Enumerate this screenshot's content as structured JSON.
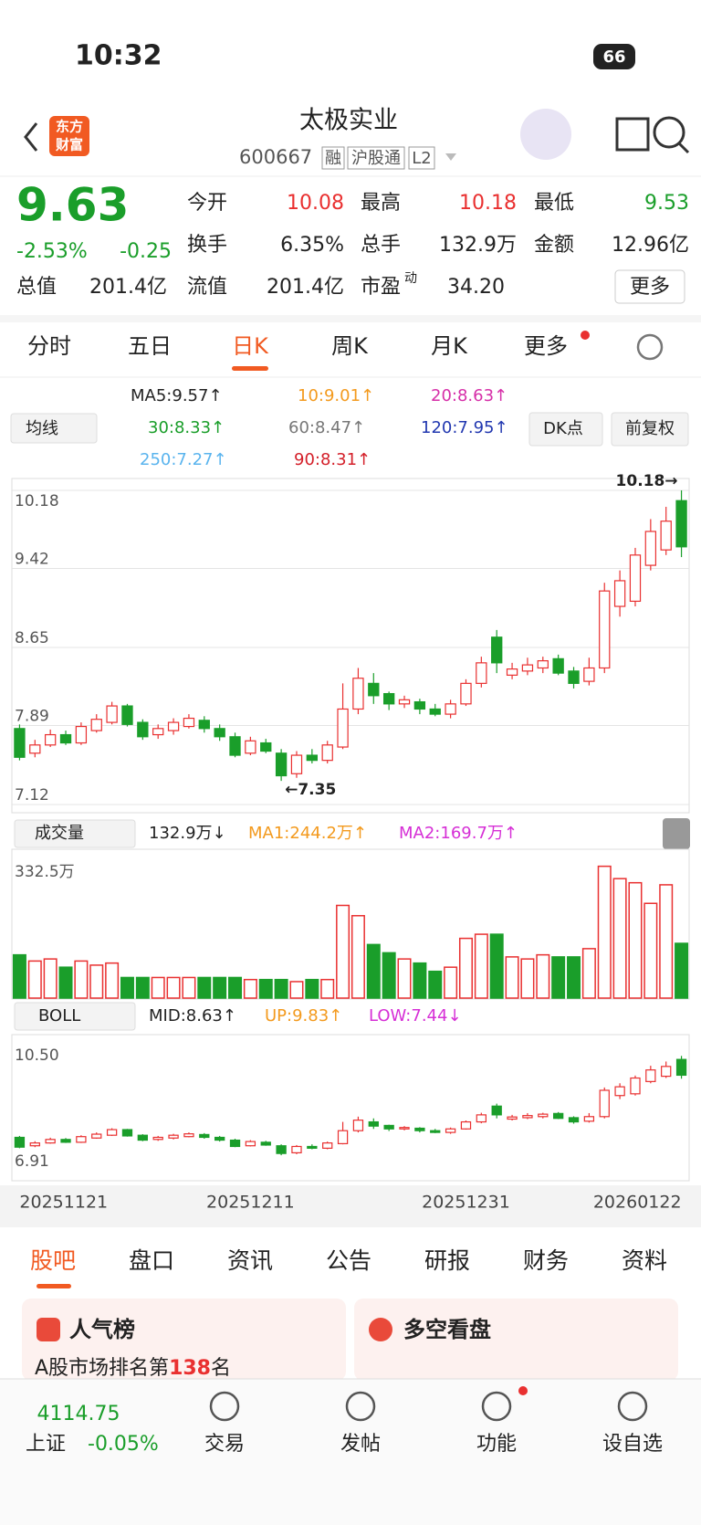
{
  "status": {
    "time": "10:32",
    "battery": "66"
  },
  "header": {
    "logo": [
      "东方",
      "财富"
    ],
    "title": "太极实业",
    "code": "600667",
    "tags": [
      "融",
      "沪股通",
      "L2"
    ]
  },
  "quote": {
    "price": "9.63",
    "change_pct": "-2.53%",
    "change": "-0.25",
    "fields": [
      {
        "label": "今开",
        "value": "10.08"
      },
      {
        "label": "最高",
        "value": "10.18"
      },
      {
        "label": "最低",
        "value": "9.53"
      },
      {
        "label": "换手",
        "value": "6.35%"
      },
      {
        "label": "总手",
        "value": "132.9万"
      },
      {
        "label": "金额",
        "value": "12.96亿"
      },
      {
        "label": "总值",
        "value": "201.4亿"
      },
      {
        "label": "流值",
        "value": "201.4亿"
      },
      {
        "label": "市盈",
        "sup": "动",
        "value": "34.20"
      }
    ],
    "more": "更多"
  },
  "tabs": [
    "分时",
    "五日",
    "日K",
    "周K",
    "月K",
    "更多"
  ],
  "indicators": {
    "ma_selector": "均线",
    "ma": [
      "MA5:9.57↑",
      "10:9.01↑",
      "20:8.63↑",
      "30:8.33↑",
      "60:8.47↑",
      "120:7.95↑",
      "250:7.27↑",
      "90:8.31↑"
    ],
    "buttons": [
      "DK点",
      "前复权"
    ],
    "volume_selector": "成交量",
    "volume": [
      "132.9万↓",
      "MA1:244.2万↑",
      "MA2:169.7万↑"
    ],
    "boll_selector": "BOLL",
    "boll": [
      "MID:8.63↑",
      "UP:9.83↑",
      "LOW:7.44↓"
    ]
  },
  "chart_data": [
    {
      "type": "candlestick",
      "up_color": "#e93030",
      "down_color": "#1a9e2a",
      "categories": [
        "20251121",
        null,
        null,
        null,
        null,
        null,
        null,
        null,
        null,
        null,
        null,
        null,
        null,
        null,
        null,
        "20251211",
        null,
        null,
        null,
        null,
        null,
        null,
        null,
        null,
        null,
        null,
        null,
        null,
        null,
        "20251231",
        null,
        null,
        null,
        null,
        null,
        null,
        null,
        null,
        null,
        null,
        null,
        null,
        null,
        "20260122"
      ],
      "open": [
        7.86,
        7.62,
        7.7,
        7.8,
        7.72,
        7.84,
        7.92,
        8.08,
        7.92,
        7.8,
        7.84,
        7.88,
        7.94,
        7.86,
        7.78,
        7.62,
        7.72,
        7.62,
        7.42,
        7.6,
        7.55,
        7.68,
        8.05,
        8.3,
        8.2,
        8.1,
        8.12,
        8.05,
        8.0,
        8.1,
        8.3,
        8.75,
        8.38,
        8.42,
        8.45,
        8.54,
        8.42,
        8.32,
        8.45,
        9.05,
        9.1,
        9.45,
        9.6,
        10.08
      ],
      "close": [
        7.58,
        7.7,
        7.8,
        7.72,
        7.88,
        7.95,
        8.08,
        7.9,
        7.78,
        7.86,
        7.92,
        7.96,
        7.86,
        7.78,
        7.6,
        7.74,
        7.64,
        7.4,
        7.6,
        7.55,
        7.7,
        8.05,
        8.35,
        8.18,
        8.1,
        8.14,
        8.05,
        8.0,
        8.1,
        8.3,
        8.5,
        8.5,
        8.44,
        8.48,
        8.52,
        8.4,
        8.3,
        8.45,
        9.2,
        9.3,
        9.55,
        9.78,
        9.88,
        9.63
      ],
      "high": [
        7.9,
        7.75,
        7.85,
        7.84,
        7.92,
        8.0,
        8.12,
        8.1,
        7.95,
        7.9,
        7.96,
        8.0,
        7.98,
        7.9,
        7.82,
        7.78,
        7.76,
        7.66,
        7.64,
        7.66,
        7.74,
        8.3,
        8.45,
        8.4,
        8.22,
        8.18,
        8.15,
        8.1,
        8.14,
        8.34,
        8.56,
        8.82,
        8.5,
        8.55,
        8.56,
        8.58,
        8.46,
        8.55,
        9.28,
        9.4,
        9.62,
        9.9,
        10.02,
        10.18
      ],
      "low": [
        7.55,
        7.58,
        7.68,
        7.7,
        7.7,
        7.82,
        7.9,
        7.88,
        7.75,
        7.76,
        7.8,
        7.86,
        7.82,
        7.74,
        7.58,
        7.6,
        7.62,
        7.35,
        7.38,
        7.52,
        7.52,
        7.66,
        8.0,
        8.1,
        8.04,
        8.06,
        8.0,
        7.98,
        7.96,
        8.08,
        8.26,
        8.4,
        8.34,
        8.38,
        8.4,
        8.38,
        8.25,
        8.28,
        8.4,
        8.95,
        9.05,
        9.4,
        9.55,
        9.53
      ],
      "ylim": [
        7.12,
        10.18
      ],
      "yticks": [
        10.18,
        9.42,
        8.65,
        7.89,
        7.12
      ],
      "grid": true,
      "annotations": [
        {
          "text": "10.18→",
          "index": 43,
          "value": 10.18
        },
        {
          "text": "←7.35",
          "index": 17,
          "value": 7.35
        }
      ]
    },
    {
      "type": "bar",
      "values": [
        105,
        90,
        95,
        75,
        90,
        80,
        85,
        50,
        50,
        50,
        50,
        50,
        50,
        50,
        50,
        45,
        45,
        45,
        40,
        45,
        45,
        225,
        200,
        130,
        110,
        95,
        85,
        65,
        75,
        145,
        155,
        155,
        100,
        95,
        105,
        100,
        100,
        120,
        320,
        290,
        280,
        230,
        275,
        132.9
      ],
      "ylim": [
        0,
        332.5
      ],
      "yticks": [
        {
          "value": 332.5,
          "label": "332.5万"
        }
      ]
    },
    {
      "type": "boll",
      "ylim": [
        6.91,
        10.5
      ],
      "yticks": [
        {
          "value": 10.5,
          "label": "10.50"
        },
        6.91
      ]
    }
  ],
  "sections": {
    "tabs": [
      "股吧",
      "盘口",
      "资讯",
      "公告",
      "研报",
      "财务",
      "资料"
    ],
    "cards": [
      {
        "title": "人气榜",
        "text": [
          "A股市场排名第",
          "138",
          "名"
        ]
      },
      {
        "title": "多空看盘"
      }
    ]
  },
  "footer": {
    "index_value": "4114.75",
    "index_name": "上证",
    "index_change": "-0.05%",
    "nav": [
      "交易",
      "发帖",
      "功能",
      "设自选"
    ]
  }
}
